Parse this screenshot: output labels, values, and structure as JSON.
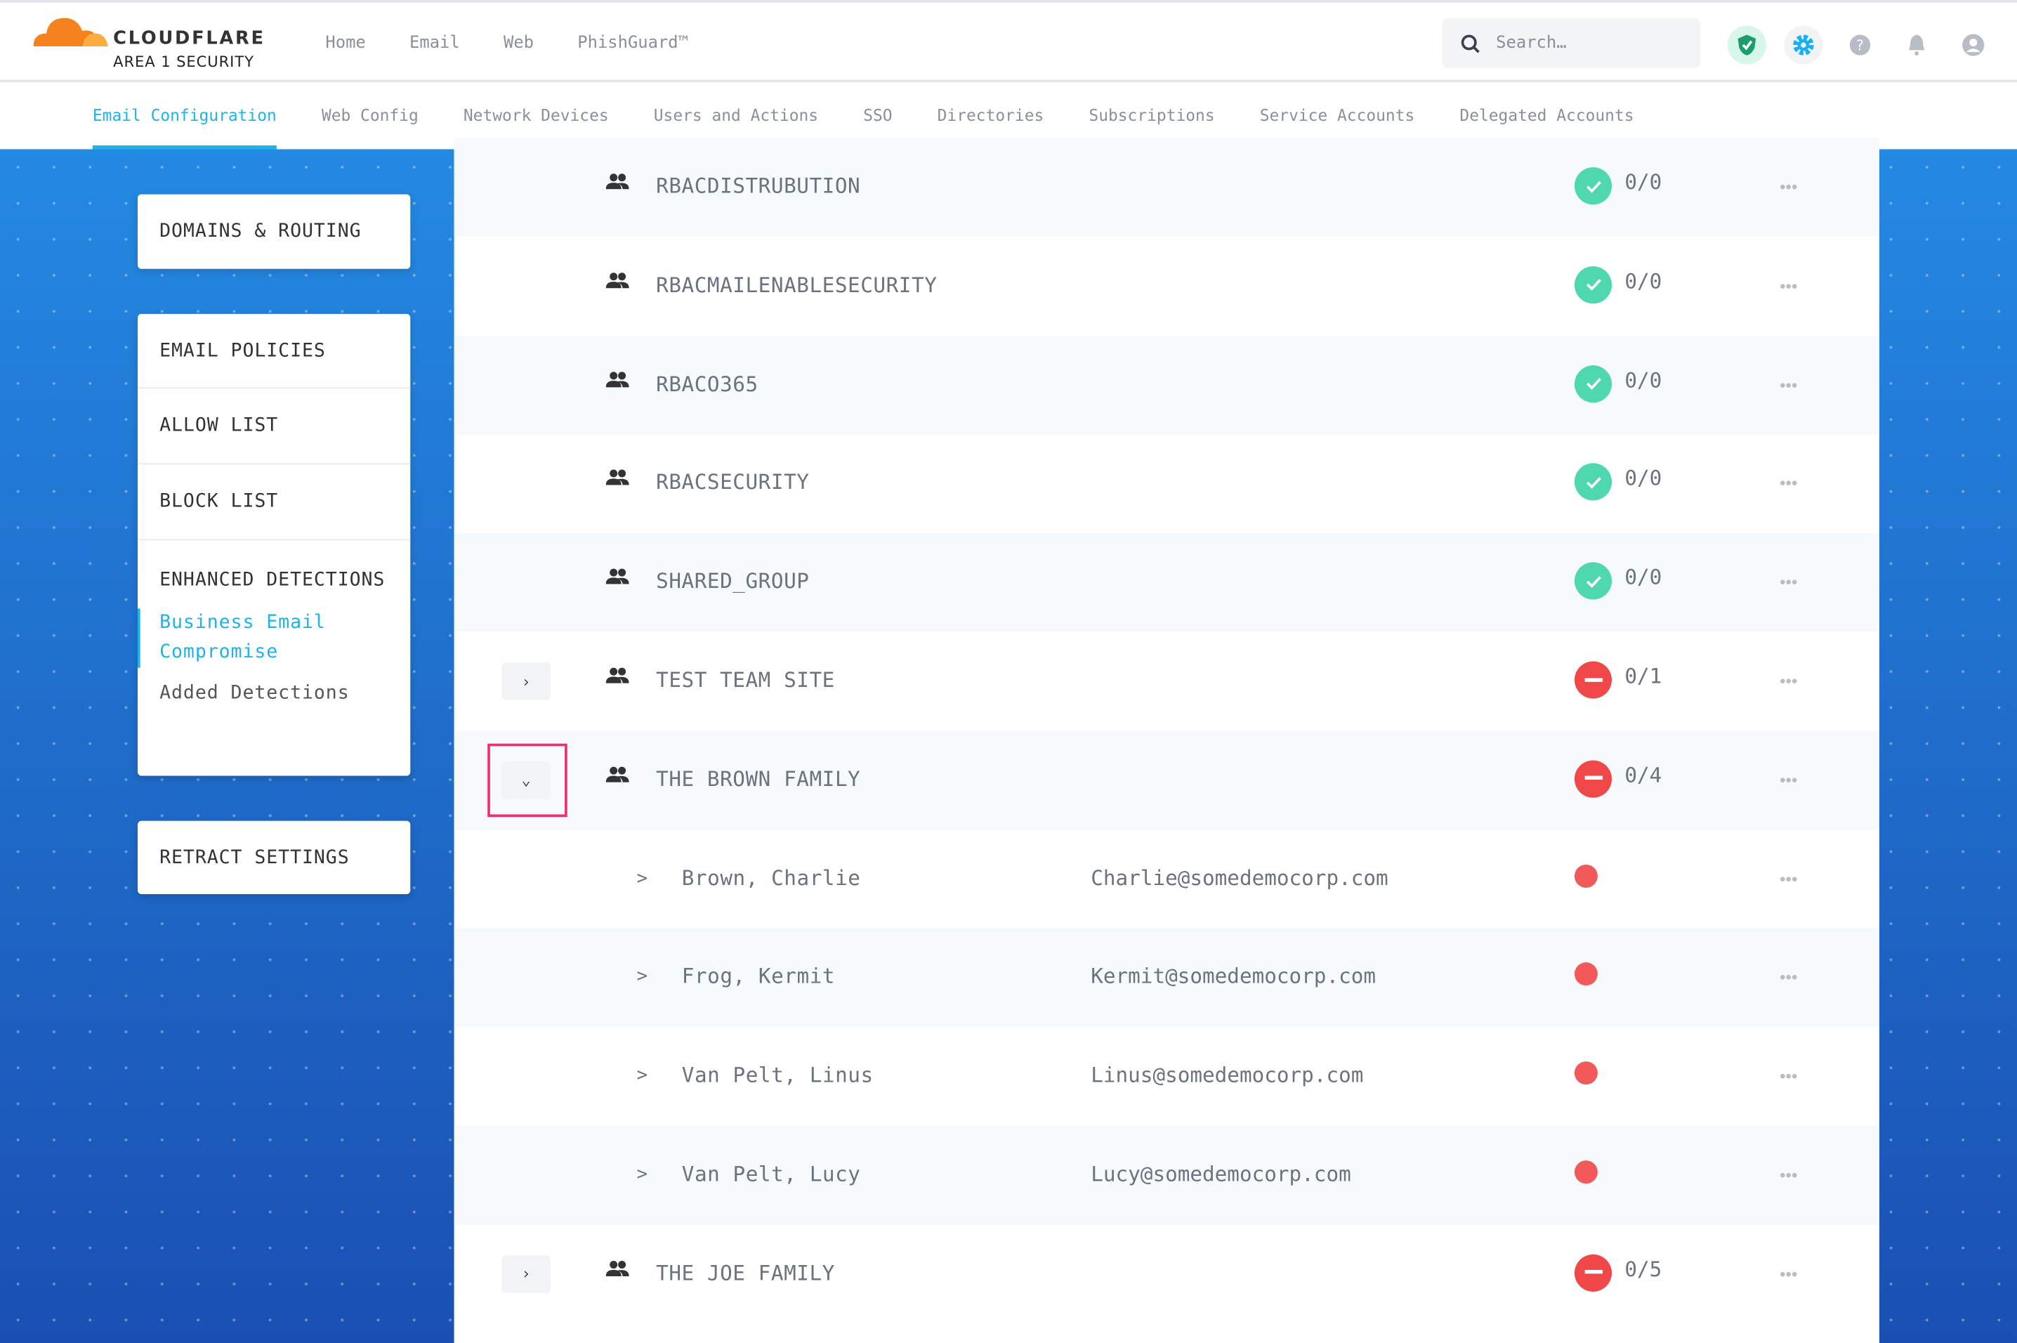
{
  "header": {
    "brand": "CLOUDFLARE",
    "sub": "AREA 1 SECURITY",
    "nav": [
      "Home",
      "Email",
      "Web",
      "PhishGuard™"
    ],
    "search_placeholder": "Search…"
  },
  "icons": [
    "shield-check-icon",
    "gear-icon",
    "help-icon",
    "bell-icon",
    "user-icon"
  ],
  "subnav": {
    "items": [
      "Email Configuration",
      "Web Config",
      "Network Devices",
      "Users and Actions",
      "SSO",
      "Directories",
      "Subscriptions",
      "Service Accounts",
      "Delegated Accounts"
    ],
    "active": 0
  },
  "sidebar": {
    "domains": "DOMAINS & ROUTING",
    "policies": "EMAIL POLICIES",
    "allow": "ALLOW LIST",
    "block": "BLOCK LIST",
    "enhanced": "ENHANCED DETECTIONS",
    "bec": "Business Email Compromise",
    "added": "Added Detections",
    "retract": "RETRACT SETTINGS"
  },
  "colors": {
    "accent": "#1fb3e8",
    "ok": "#4fd8b0",
    "error": "#f04848",
    "highlight": "#f0306e"
  },
  "rows": [
    {
      "type": "group",
      "name": "RBACDISTRUBUTION",
      "status": "ok",
      "count": "0/0"
    },
    {
      "type": "group",
      "name": "RBACMAILENABLESECURITY",
      "status": "ok",
      "count": "0/0"
    },
    {
      "type": "group",
      "name": "RBACO365",
      "status": "ok",
      "count": "0/0"
    },
    {
      "type": "group",
      "name": "RBACSECURITY",
      "status": "ok",
      "count": "0/0"
    },
    {
      "type": "group",
      "name": "SHARED_GROUP",
      "status": "ok",
      "count": "0/0"
    },
    {
      "type": "group",
      "name": "TEST TEAM SITE",
      "status": "error",
      "count": "0/1",
      "expand": "collapsed"
    },
    {
      "type": "group",
      "name": "THE BROWN FAMILY",
      "status": "error",
      "count": "0/4",
      "expand": "expanded",
      "highlighted": true
    },
    {
      "type": "member",
      "name": "Brown, Charlie",
      "email": "Charlie@somedemocorp.com",
      "status": "error"
    },
    {
      "type": "member",
      "name": "Frog, Kermit",
      "email": "Kermit@somedemocorp.com",
      "status": "error"
    },
    {
      "type": "member",
      "name": "Van Pelt, Linus",
      "email": "Linus@somedemocorp.com",
      "status": "error"
    },
    {
      "type": "member",
      "name": "Van Pelt, Lucy",
      "email": "Lucy@somedemocorp.com",
      "status": "error"
    },
    {
      "type": "group",
      "name": "THE JOE FAMILY",
      "status": "error",
      "count": "0/5",
      "expand": "collapsed"
    }
  ]
}
